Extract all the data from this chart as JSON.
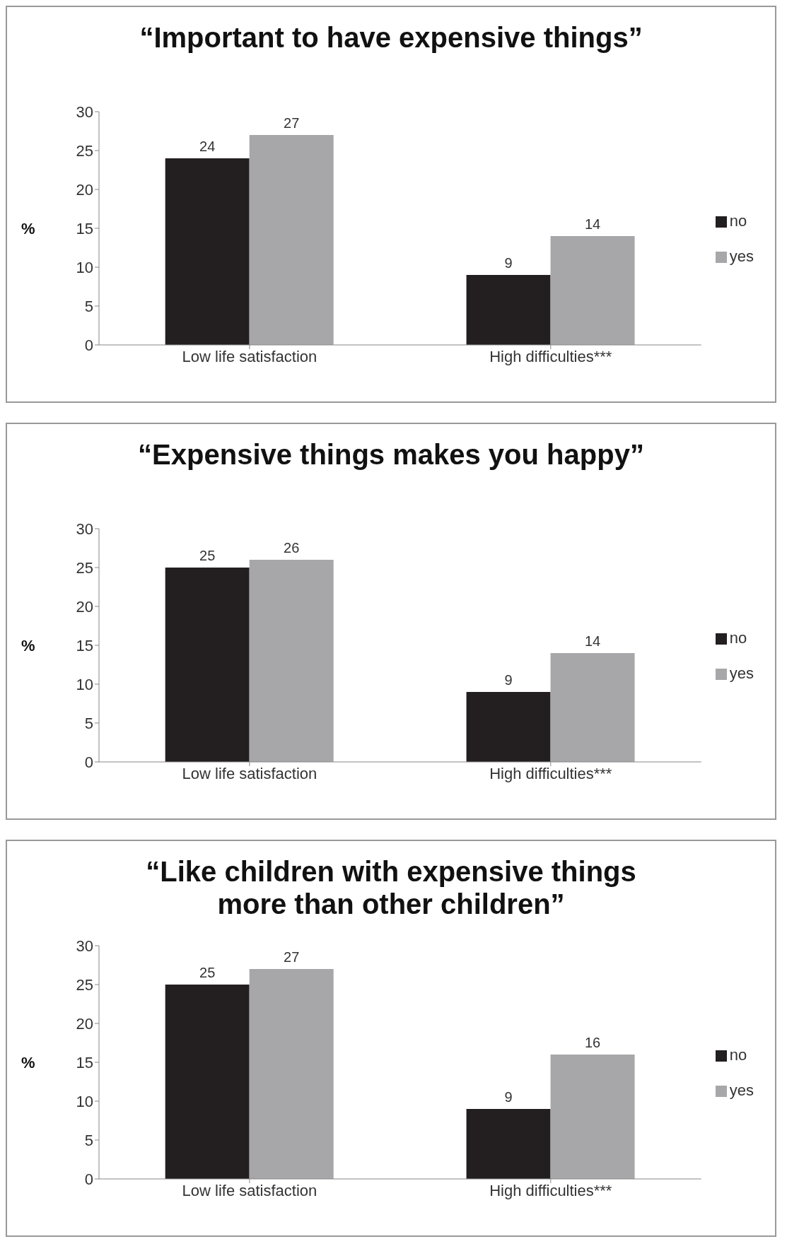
{
  "chart_data": [
    {
      "type": "bar",
      "title": "“Important to have expensive things”",
      "ylabel": "%",
      "categories": [
        "Low life satisfaction",
        "High difficulties***"
      ],
      "series": [
        {
          "name": "no",
          "color": "#231f20",
          "values": [
            24,
            9
          ]
        },
        {
          "name": "yes",
          "color": "#a7a7aa",
          "values": [
            27,
            14
          ]
        }
      ],
      "ylim": [
        0,
        30
      ],
      "yticks": [
        0,
        5,
        10,
        15,
        20,
        25,
        30
      ],
      "data_labels": true,
      "legend": "right"
    },
    {
      "type": "bar",
      "title": "“Expensive things makes you happy”",
      "ylabel": "%",
      "categories": [
        "Low life satisfaction",
        "High difficulties***"
      ],
      "series": [
        {
          "name": "no",
          "color": "#231f20",
          "values": [
            25,
            9
          ]
        },
        {
          "name": "yes",
          "color": "#a7a7aa",
          "values": [
            26,
            14
          ]
        }
      ],
      "ylim": [
        0,
        30
      ],
      "yticks": [
        0,
        5,
        10,
        15,
        20,
        25,
        30
      ],
      "data_labels": true,
      "legend": "right"
    },
    {
      "type": "bar",
      "title": "“Like children with expensive things more than other children”",
      "ylabel": "%",
      "categories": [
        "Low life satisfaction",
        "High difficulties***"
      ],
      "series": [
        {
          "name": "no",
          "color": "#231f20",
          "values": [
            25,
            9
          ]
        },
        {
          "name": "yes",
          "color": "#a7a7aa",
          "values": [
            27,
            16
          ]
        }
      ],
      "ylim": [
        0,
        30
      ],
      "yticks": [
        0,
        5,
        10,
        15,
        20,
        25,
        30
      ],
      "data_labels": true,
      "legend": "right"
    }
  ]
}
